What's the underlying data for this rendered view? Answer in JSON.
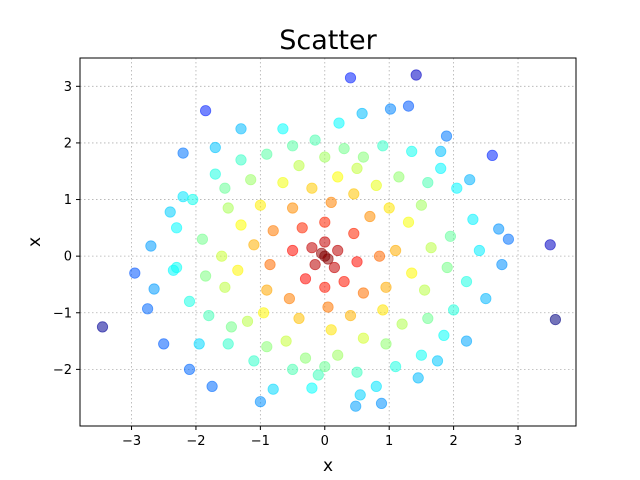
{
  "chart_data": {
    "type": "scatter",
    "title": "Scatter",
    "xlabel": "x",
    "ylabel": "x",
    "xlim": [
      -3.8,
      3.9
    ],
    "ylim": [
      -3.0,
      3.5
    ],
    "grid": true,
    "colormap": "jet",
    "xticks": [
      -3,
      -2,
      -1,
      0,
      1,
      2,
      3
    ],
    "yticks": [
      -2,
      -1,
      0,
      1,
      2,
      3
    ],
    "xtick_labels": [
      "−3",
      "−2",
      "−1",
      "0",
      "1",
      "2",
      "3"
    ],
    "ytick_labels": [
      "−2",
      "−1",
      "0",
      "1",
      "2",
      "3"
    ],
    "points": [
      [
        0.4,
        3.15
      ],
      [
        1.42,
        3.2
      ],
      [
        -1.85,
        2.57
      ],
      [
        3.5,
        0.2
      ],
      [
        3.58,
        -1.12
      ],
      [
        -3.45,
        -1.25
      ],
      [
        -2.95,
        -0.3
      ],
      [
        2.6,
        1.78
      ],
      [
        -2.2,
        1.82
      ],
      [
        -1.3,
        2.25
      ],
      [
        1.3,
        2.65
      ],
      [
        1.02,
        2.6
      ],
      [
        0.58,
        2.52
      ],
      [
        1.89,
        2.12
      ],
      [
        -2.5,
        -1.55
      ],
      [
        -1.75,
        -2.3
      ],
      [
        -1.0,
        -2.57
      ],
      [
        -2.1,
        -2.0
      ],
      [
        0.48,
        -2.65
      ],
      [
        0.88,
        -2.6
      ],
      [
        0.55,
        -2.45
      ],
      [
        -0.2,
        -2.33
      ],
      [
        1.45,
        -2.15
      ],
      [
        2.5,
        -0.75
      ],
      [
        2.85,
        0.3
      ],
      [
        -2.75,
        -0.93
      ],
      [
        -2.65,
        -0.58
      ],
      [
        2.7,
        0.48
      ],
      [
        -2.7,
        0.18
      ],
      [
        -2.35,
        -0.25
      ],
      [
        2.75,
        -0.15
      ],
      [
        -2.4,
        0.78
      ],
      [
        2.25,
        1.35
      ],
      [
        1.8,
        1.85
      ],
      [
        -1.7,
        1.92
      ],
      [
        0.8,
        -2.3
      ],
      [
        -0.8,
        -2.35
      ],
      [
        -2.2,
        1.05
      ],
      [
        2.2,
        -1.5
      ],
      [
        -1.95,
        -1.55
      ],
      [
        1.75,
        -1.85
      ],
      [
        -0.1,
        -2.1
      ],
      [
        0.22,
        2.35
      ],
      [
        -0.65,
        2.25
      ],
      [
        -0.5,
        1.95
      ],
      [
        -0.15,
        2.05
      ],
      [
        0.9,
        1.95
      ],
      [
        1.35,
        1.85
      ],
      [
        -1.3,
        1.7
      ],
      [
        -1.7,
        1.45
      ],
      [
        1.8,
        1.55
      ],
      [
        2.05,
        1.2
      ],
      [
        -2.05,
        1.0
      ],
      [
        2.3,
        0.65
      ],
      [
        -2.3,
        0.5
      ],
      [
        2.4,
        0.1
      ],
      [
        -2.3,
        -0.2
      ],
      [
        2.2,
        -0.45
      ],
      [
        -2.1,
        -0.8
      ],
      [
        2.0,
        -0.95
      ],
      [
        -1.8,
        -1.05
      ],
      [
        1.85,
        -1.4
      ],
      [
        -1.5,
        -1.55
      ],
      [
        1.5,
        -1.75
      ],
      [
        -1.1,
        -1.85
      ],
      [
        1.1,
        -1.95
      ],
      [
        -0.5,
        -2.0
      ],
      [
        0.5,
        -2.05
      ],
      [
        0.0,
        -1.95
      ],
      [
        0.3,
        1.9
      ],
      [
        -0.9,
        1.8
      ],
      [
        0.6,
        1.75
      ],
      [
        1.6,
        1.3
      ],
      [
        -1.55,
        1.2
      ],
      [
        -1.9,
        0.3
      ],
      [
        1.95,
        0.35
      ],
      [
        1.9,
        -0.2
      ],
      [
        -1.85,
        -0.35
      ],
      [
        1.6,
        -1.1
      ],
      [
        -1.45,
        -1.25
      ],
      [
        -0.9,
        -1.6
      ],
      [
        0.95,
        -1.55
      ],
      [
        0.2,
        -1.75
      ],
      [
        -0.3,
        -1.8
      ],
      [
        0.0,
        1.75
      ],
      [
        -0.4,
        1.6
      ],
      [
        0.5,
        1.55
      ],
      [
        1.15,
        1.4
      ],
      [
        -1.15,
        1.35
      ],
      [
        1.5,
        0.9
      ],
      [
        -1.5,
        0.85
      ],
      [
        1.65,
        0.15
      ],
      [
        -1.6,
        0.0
      ],
      [
        1.55,
        -0.6
      ],
      [
        -1.55,
        -0.55
      ],
      [
        1.2,
        -1.2
      ],
      [
        -1.2,
        -1.15
      ],
      [
        0.6,
        -1.45
      ],
      [
        -0.6,
        -1.5
      ],
      [
        0.2,
        1.4
      ],
      [
        -0.65,
        1.3
      ],
      [
        0.8,
        1.25
      ],
      [
        1.3,
        0.6
      ],
      [
        -1.3,
        0.55
      ],
      [
        1.35,
        -0.3
      ],
      [
        -1.35,
        -0.25
      ],
      [
        0.9,
        -0.95
      ],
      [
        -0.95,
        -1.0
      ],
      [
        0.1,
        -1.3
      ],
      [
        -0.2,
        1.2
      ],
      [
        0.45,
        1.1
      ],
      [
        1.0,
        0.85
      ],
      [
        -1.0,
        0.9
      ],
      [
        1.1,
        0.1
      ],
      [
        -1.1,
        0.2
      ],
      [
        0.95,
        -0.55
      ],
      [
        -0.9,
        -0.6
      ],
      [
        0.4,
        -1.05
      ],
      [
        -0.4,
        -1.1
      ],
      [
        0.1,
        0.95
      ],
      [
        -0.5,
        0.85
      ],
      [
        0.7,
        0.7
      ],
      [
        -0.8,
        0.45
      ],
      [
        0.85,
        0.0
      ],
      [
        -0.85,
        -0.15
      ],
      [
        0.6,
        -0.65
      ],
      [
        -0.55,
        -0.75
      ],
      [
        0.05,
        -0.9
      ],
      [
        0.0,
        0.6
      ],
      [
        -0.35,
        0.5
      ],
      [
        0.45,
        0.4
      ],
      [
        -0.5,
        0.1
      ],
      [
        0.5,
        -0.1
      ],
      [
        -0.3,
        -0.4
      ],
      [
        0.3,
        -0.45
      ],
      [
        0.0,
        -0.55
      ],
      [
        0.0,
        0.25
      ],
      [
        -0.2,
        0.15
      ],
      [
        0.2,
        0.1
      ],
      [
        -0.15,
        -0.15
      ],
      [
        0.15,
        -0.2
      ],
      [
        0.0,
        0.0
      ],
      [
        0.05,
        -0.05
      ],
      [
        -0.05,
        0.05
      ]
    ]
  }
}
